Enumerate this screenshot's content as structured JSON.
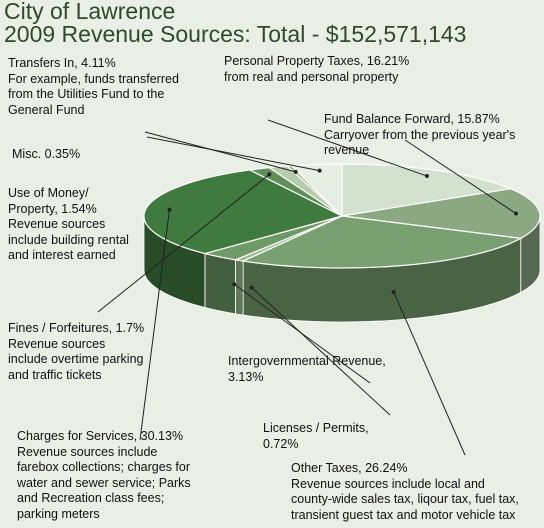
{
  "header": {
    "title": "City of Lawrence",
    "subtitle": "2009 Revenue Sources: Total - $152,571,143"
  },
  "colors": {
    "background": "#e9efe5",
    "title": "#2d4a2d",
    "leader_lines": "#222222"
  },
  "chart_data": {
    "type": "pie",
    "title": "City of Lawrence",
    "subtitle": "2009 Revenue Sources: Total - $152,571,143",
    "total": "$152,571,143",
    "style": "3d",
    "slices": [
      {
        "name": "Personal Property Taxes",
        "value": 16.21,
        "color": "#d3e2cf",
        "label": [
          "Personal Property Taxes, 16.21%",
          "from real and personal property"
        ]
      },
      {
        "name": "Fund Balance Forward",
        "value": 15.87,
        "color": "#8aa882",
        "label": [
          "Fund Balance Forward, 15.87%",
          "Carryover from the previous year's",
          "revenue"
        ]
      },
      {
        "name": "Other Taxes",
        "value": 26.24,
        "color": "#78a070",
        "label": [
          "Other Taxes, 26.24%",
          "Revenue sources include local and",
          "county-wide sales tax, liqour tax, fuel tax,",
          "transient guest tax and motor vehicle tax"
        ]
      },
      {
        "name": "Licenses / Permits",
        "value": 0.72,
        "color": "#9dbe93",
        "label": [
          "Licenses / Permits,",
          "0.72%"
        ]
      },
      {
        "name": "Intergovernmental Revenue",
        "value": 3.13,
        "color": "#6d9a65",
        "label": [
          "Intergovernmental Revenue,",
          "3.13%"
        ]
      },
      {
        "name": "Charges for Services",
        "value": 30.13,
        "color": "#3f7a3f",
        "label": [
          "Charges for Services, 30.13%",
          "Revenue sources include",
          "farebox collections; charges for",
          "water and sewer service; Parks",
          "and Recreation class fees;",
          "parking meters"
        ]
      },
      {
        "name": "Fines / Forfeitures",
        "value": 1.7,
        "color": "#5e8f58",
        "label": [
          "Fines / Forfeitures, 1.7%",
          "Revenue sources",
          "include overtime parking",
          "and traffic tickets"
        ]
      },
      {
        "name": "Use of Money/ Property",
        "value": 1.54,
        "color": "#b5ccad",
        "label": [
          "Use of Money/",
          "Property, 1.54%",
          "Revenue sources",
          "include building rental",
          "and interest earned"
        ]
      },
      {
        "name": "Misc.",
        "value": 0.35,
        "color": "#8fb086",
        "label": [
          "Misc. 0.35%"
        ]
      },
      {
        "name": "Transfers In",
        "value": 4.11,
        "color": "#e6efe2",
        "label": [
          "Transfers In, 4.11%",
          "For example, funds transferred",
          "from the Utilities Fund to the",
          "General Fund"
        ]
      }
    ]
  }
}
